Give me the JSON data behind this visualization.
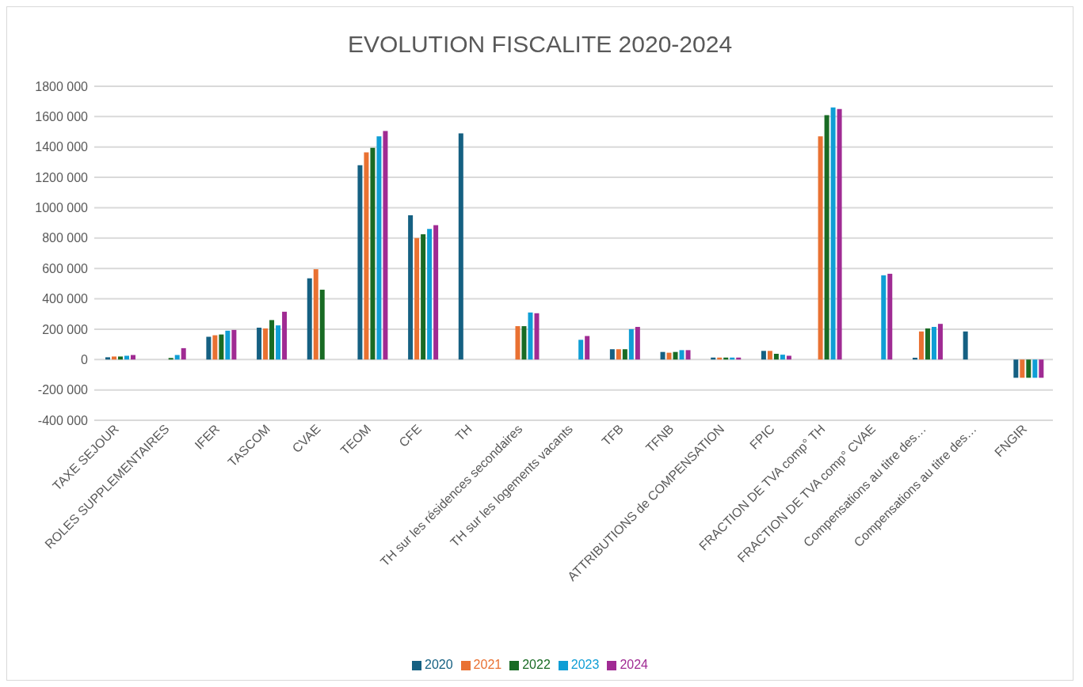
{
  "chart_data": {
    "type": "bar",
    "title": "EVOLUTION FISCALITE 2020-2024",
    "categories": [
      "TAXE SEJOUR",
      "ROLES SUPPLEMENTAIRES",
      "IFER",
      "TASCOM",
      "CVAE",
      "TEOM",
      "CFE",
      "TH",
      "TH sur les résidences secondaires",
      "TH sur les logements vacants",
      "TFB",
      "TFNB",
      "ATTRIBUTIONS de COMPENSATION",
      "FPIC",
      "FRACTION DE TVA comp° TH",
      "FRACTION DE TVA comp° CVAE",
      "Compensations au titre des…",
      "Compensations au titre des…",
      "FNGIR"
    ],
    "series": [
      {
        "name": "2020",
        "color": "#156082",
        "values": [
          15000,
          null,
          150000,
          210000,
          535000,
          1280000,
          950000,
          1490000,
          null,
          null,
          68000,
          50000,
          13000,
          57000,
          null,
          null,
          12000,
          185000,
          -120000
        ]
      },
      {
        "name": "2021",
        "color": "#e97132",
        "values": [
          20000,
          null,
          160000,
          205000,
          595000,
          1365000,
          800000,
          null,
          220000,
          null,
          68000,
          45000,
          13000,
          57000,
          1470000,
          null,
          185000,
          null,
          -120000
        ]
      },
      {
        "name": "2022",
        "color": "#196b24",
        "values": [
          20000,
          5000,
          165000,
          260000,
          460000,
          1395000,
          825000,
          null,
          220000,
          null,
          68000,
          50000,
          13000,
          38000,
          1610000,
          null,
          205000,
          null,
          -120000
        ]
      },
      {
        "name": "2023",
        "color": "#0f9ed5",
        "values": [
          25000,
          30000,
          190000,
          225000,
          null,
          1470000,
          860000,
          null,
          310000,
          130000,
          200000,
          62000,
          13000,
          32000,
          1660000,
          555000,
          215000,
          null,
          -120000
        ]
      },
      {
        "name": "2024",
        "color": "#a02b93",
        "values": [
          30000,
          75000,
          195000,
          315000,
          null,
          1505000,
          885000,
          null,
          305000,
          155000,
          215000,
          62000,
          13000,
          25000,
          1650000,
          565000,
          235000,
          null,
          -120000
        ]
      }
    ],
    "ylim": [
      -400000,
      1800000
    ],
    "yticks": [
      {
        "value": -400000,
        "label": "-400 000"
      },
      {
        "value": -200000,
        "label": "-200 000"
      },
      0,
      {
        "value": 200000,
        "label": "200 000"
      },
      {
        "value": 400000,
        "label": "400 000"
      },
      {
        "value": 600000,
        "label": "600 000"
      },
      {
        "value": 800000,
        "label": "800 000"
      },
      {
        "value": 1000000,
        "label": "1000 000"
      },
      {
        "value": 1200000,
        "label": "1200 000"
      },
      {
        "value": 1400000,
        "label": "1400 000"
      },
      {
        "value": 1600000,
        "label": "1600 000"
      },
      {
        "value": 1800000,
        "label": "1800 000"
      }
    ],
    "grid": "y",
    "legend": "bottom"
  }
}
